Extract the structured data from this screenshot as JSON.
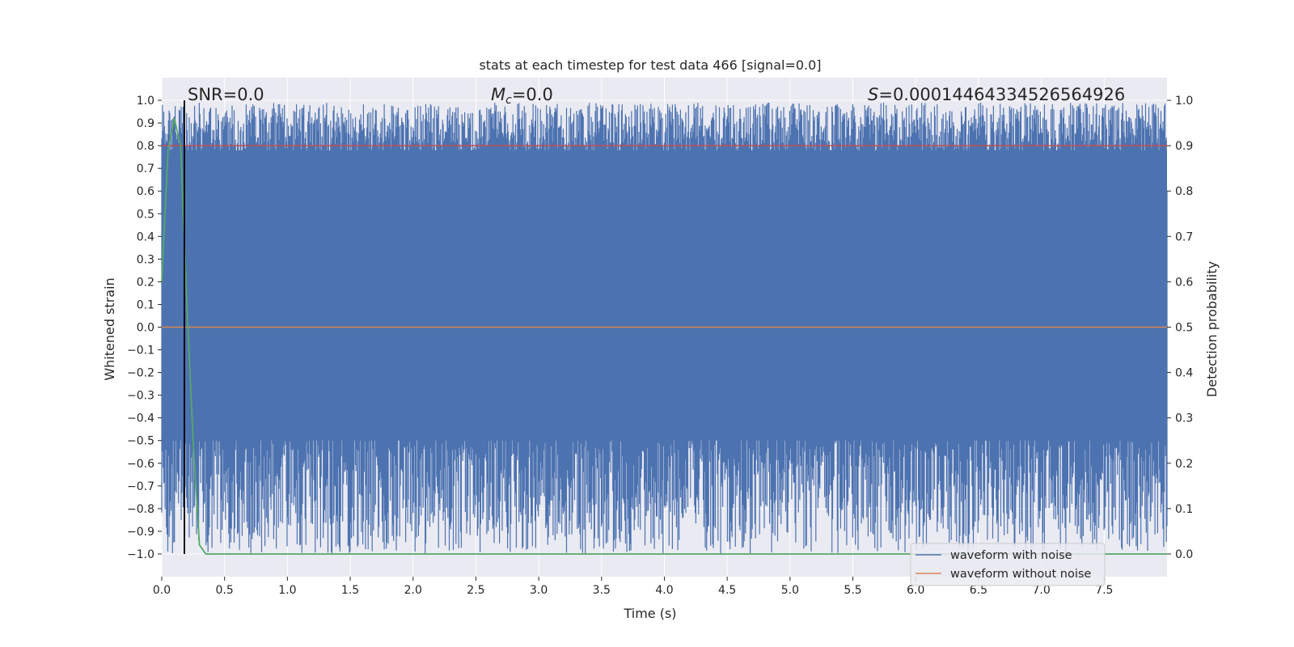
{
  "chart_data": {
    "type": "line",
    "title": "stats at each timestep for test data 466 [signal=0.0]",
    "xlabel": "Time (s)",
    "ylabel": "Whitened strain",
    "ylabel_right": "Detection probability",
    "xlim": [
      0.0,
      8.0
    ],
    "ylim": [
      -1.1,
      1.1
    ],
    "ylim_right": [
      -0.05,
      1.05
    ],
    "x_ticks": [
      "0.0",
      "0.5",
      "1.0",
      "1.5",
      "2.0",
      "2.5",
      "3.0",
      "3.5",
      "4.0",
      "4.5",
      "5.0",
      "5.5",
      "6.0",
      "6.5",
      "7.0",
      "7.5"
    ],
    "x_tick_values": [
      0,
      0.5,
      1,
      1.5,
      2,
      2.5,
      3,
      3.5,
      4,
      4.5,
      5,
      5.5,
      6,
      6.5,
      7,
      7.5
    ],
    "y_ticks": [
      "1.0",
      "0.9",
      "0.8",
      "0.7",
      "0.6",
      "0.5",
      "0.4",
      "0.3",
      "0.2",
      "0.1",
      "0.0",
      "−0.1",
      "−0.2",
      "−0.3",
      "−0.4",
      "−0.5",
      "−0.6",
      "−0.7",
      "−0.8",
      "−0.9",
      "−1.0"
    ],
    "y_tick_values": [
      1,
      0.9,
      0.8,
      0.7,
      0.6,
      0.5,
      0.4,
      0.3,
      0.2,
      0.1,
      0,
      -0.1,
      -0.2,
      -0.3,
      -0.4,
      -0.5,
      -0.6,
      -0.7,
      -0.8,
      -0.9,
      -1.0
    ],
    "y_right_ticks": [
      "1.0",
      "0.9",
      "0.8",
      "0.7",
      "0.6",
      "0.5",
      "0.4",
      "0.3",
      "0.2",
      "0.1",
      "0.0"
    ],
    "y_right_tick_values": [
      1,
      0.9,
      0.8,
      0.7,
      0.6,
      0.5,
      0.4,
      0.3,
      0.2,
      0.1,
      0
    ],
    "grid": true,
    "legend_position": "lower-right",
    "annotations": {
      "snr": "SNR=0.0",
      "mc_symbol": "M",
      "mc_sub": "c",
      "mc_value": "=0.0",
      "s_symbol": "S",
      "s_value": "=0.0001446433452656492​6"
    },
    "series": [
      {
        "name": "waveform with noise",
        "color": "#4c72b0",
        "description_type": "dense noise filling roughly -0.97 to 0.97 across 0-8 s",
        "envelope": {
          "upper": 0.99,
          "lower": -1.0
        }
      },
      {
        "name": "waveform without noise",
        "color": "#dd8452",
        "x": [
          0.0,
          8.0
        ],
        "y": [
          0.0,
          0.0
        ]
      },
      {
        "axis": "right",
        "color": "#55a868",
        "x": [
          0.0,
          0.05,
          0.1,
          0.15,
          0.2,
          0.25,
          0.3,
          0.35,
          0.4,
          8.0
        ],
        "y": [
          0.6,
          0.89,
          0.96,
          0.9,
          0.55,
          0.25,
          0.02,
          0.0,
          0.0,
          0.0
        ]
      },
      {
        "axis": "right",
        "color": "#c44e52",
        "x": [
          0.0,
          8.0
        ],
        "y": [
          0.9,
          0.9
        ]
      }
    ],
    "vertical_line": {
      "x": 0.18,
      "color": "#000000"
    },
    "colors": {
      "plot_bg": "#eaeaf2",
      "grid": "#ffffff",
      "noise": "#4c72b0",
      "clean": "#dd8452",
      "prob": "#55a868",
      "threshold": "#c44e52"
    }
  }
}
